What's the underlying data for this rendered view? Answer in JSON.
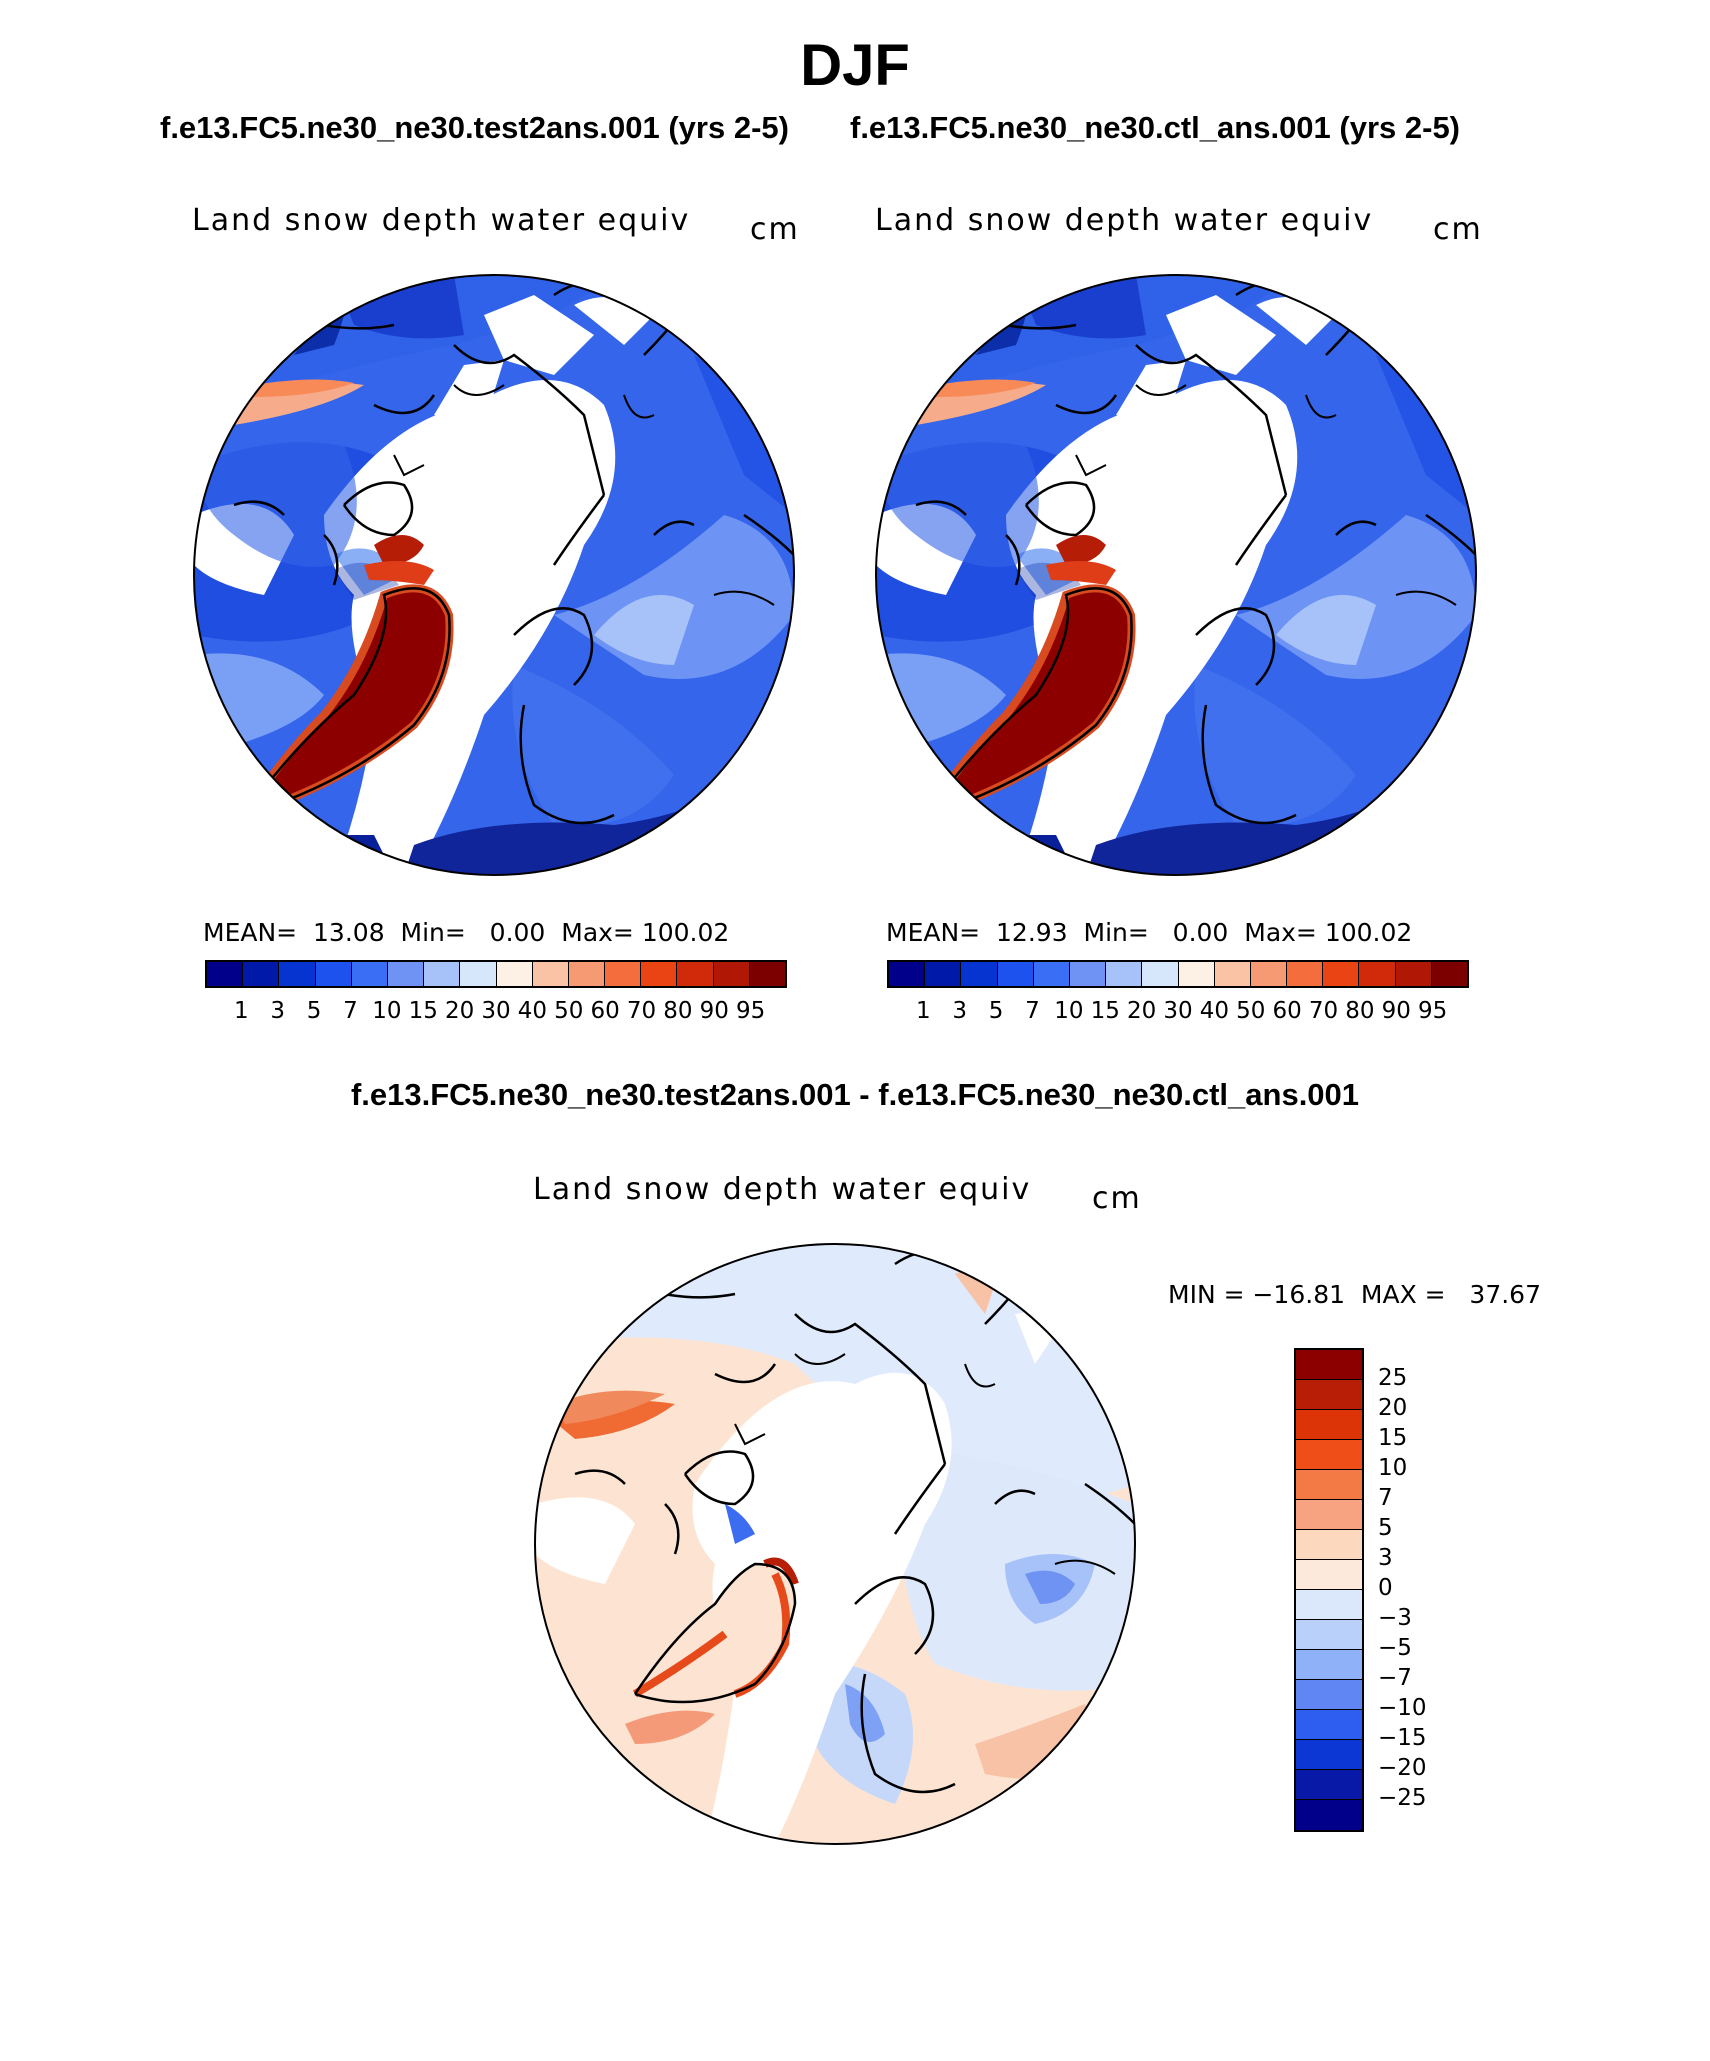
{
  "title": "DJF",
  "subtitles": {
    "left": "f.e13.FC5.ne30_ne30.test2ans.001 (yrs 2-5)",
    "right": "f.e13.FC5.ne30_ne30.ctl_ans.001 (yrs 2-5)"
  },
  "panels": [
    {
      "variable": "Land snow depth water equiv",
      "units": "cm",
      "mean_label": "MEAN=",
      "mean": "13.08",
      "min_label": "Min=",
      "min": "0.00",
      "max_label": "Max=",
      "max": "100.02"
    },
    {
      "variable": "Land snow depth water equiv",
      "units": "cm",
      "mean_label": "MEAN=",
      "mean": "12.93",
      "min_label": "Min=",
      "min": "0.00",
      "max_label": "Max=",
      "max": "100.02"
    }
  ],
  "diff_panel": {
    "title": "f.e13.FC5.ne30_ne30.test2ans.001 - f.e13.FC5.ne30_ne30.ctl_ans.001",
    "variable": "Land snow depth water equiv",
    "units": "cm",
    "minmax": "MIN = −16.81  MAX =   37.67"
  },
  "colorbar_levels": [
    "1",
    "3",
    "5",
    "7",
    "10",
    "15",
    "20",
    "30",
    "40",
    "50",
    "60",
    "70",
    "80",
    "90",
    "95"
  ],
  "colorbar_colors": [
    "#00008b",
    "#0019a8",
    "#0534d0",
    "#1e52ee",
    "#3a6ef5",
    "#6e93f5",
    "#a6c2f8",
    "#d6e6fb",
    "#fde6d2",
    "#fac3a6",
    "#f69a73",
    "#f46d3c",
    "#ea4314",
    "#c92508",
    "#8c0000"
  ],
  "diff_levels": [
    "25",
    "20",
    "15",
    "10",
    "7",
    "5",
    "3",
    "0",
    "−3",
    "−5",
    "−7",
    "−10",
    "−15",
    "−20",
    "−25"
  ],
  "diff_colors": [
    "#8c0000",
    "#b81d06",
    "#dc3407",
    "#f04e18",
    "#f47a45",
    "#f7a382",
    "#fcd8bf",
    "#fde9dc",
    "#dbe8fb",
    "#b9d1fa",
    "#8fb1f7",
    "#5f86f3",
    "#2d5ef0",
    "#0d37d4",
    "#0819a8",
    "#00008b"
  ]
}
